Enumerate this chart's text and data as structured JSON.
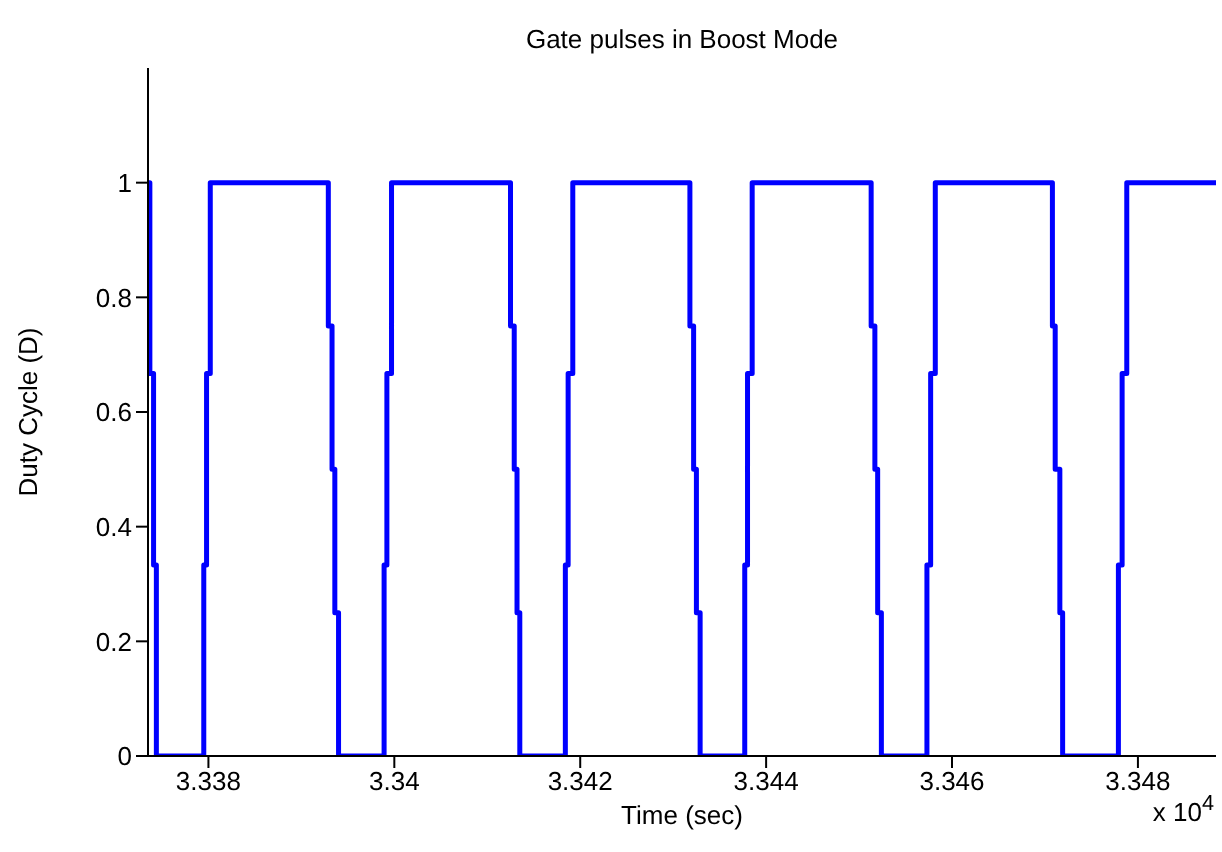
{
  "chart_data": {
    "type": "step",
    "title": "Gate pulses in Boost Mode",
    "xlabel": "Time (sec)",
    "ylabel": "Duty Cycle (D)",
    "annotations": [
      "x 10$^{4}$"
    ],
    "x": [
      3.33735,
      3.33737,
      3.33741,
      3.33744,
      3.33795,
      3.33798,
      3.33802,
      3.33929,
      3.33933,
      3.33936,
      3.3394,
      3.33989,
      3.33992,
      3.33997,
      3.34125,
      3.34129,
      3.34132,
      3.34135,
      3.34184,
      3.34187,
      3.34192,
      3.34318,
      3.34322,
      3.34325,
      3.34329,
      3.34377,
      3.3438,
      3.34385,
      3.34513,
      3.34517,
      3.3452,
      3.34524,
      3.34573,
      3.34577,
      3.34582,
      3.34708,
      3.34711,
      3.34716,
      3.34719,
      3.34779,
      3.34783,
      3.34788,
      3.34884
    ],
    "series": [
      {
        "color": "#0000ff",
        "values": [
          1,
          0.667,
          0.333,
          0,
          0.333,
          0.667,
          1,
          0.75,
          0.5,
          0.25,
          0,
          0.333,
          0.667,
          1,
          0.75,
          0.5,
          0.25,
          0,
          0.333,
          0.667,
          1,
          0.75,
          0.5,
          0.25,
          0,
          0.333,
          0.667,
          1,
          0.75,
          0.5,
          0.25,
          0,
          0.333,
          0.667,
          1,
          0.75,
          0.5,
          0.25,
          0,
          0.333,
          0.667,
          1,
          1
        ]
      }
    ],
    "xlim": [
      3.33735,
      3.34884
    ],
    "xticks": [
      3.338,
      3.34,
      3.342,
      3.344,
      3.346,
      3.348
    ],
    "ylim": [
      0,
      1.2
    ],
    "yticks": [
      0,
      0.2,
      0.4,
      0.6,
      0.8,
      1
    ],
    "grid": false
  }
}
